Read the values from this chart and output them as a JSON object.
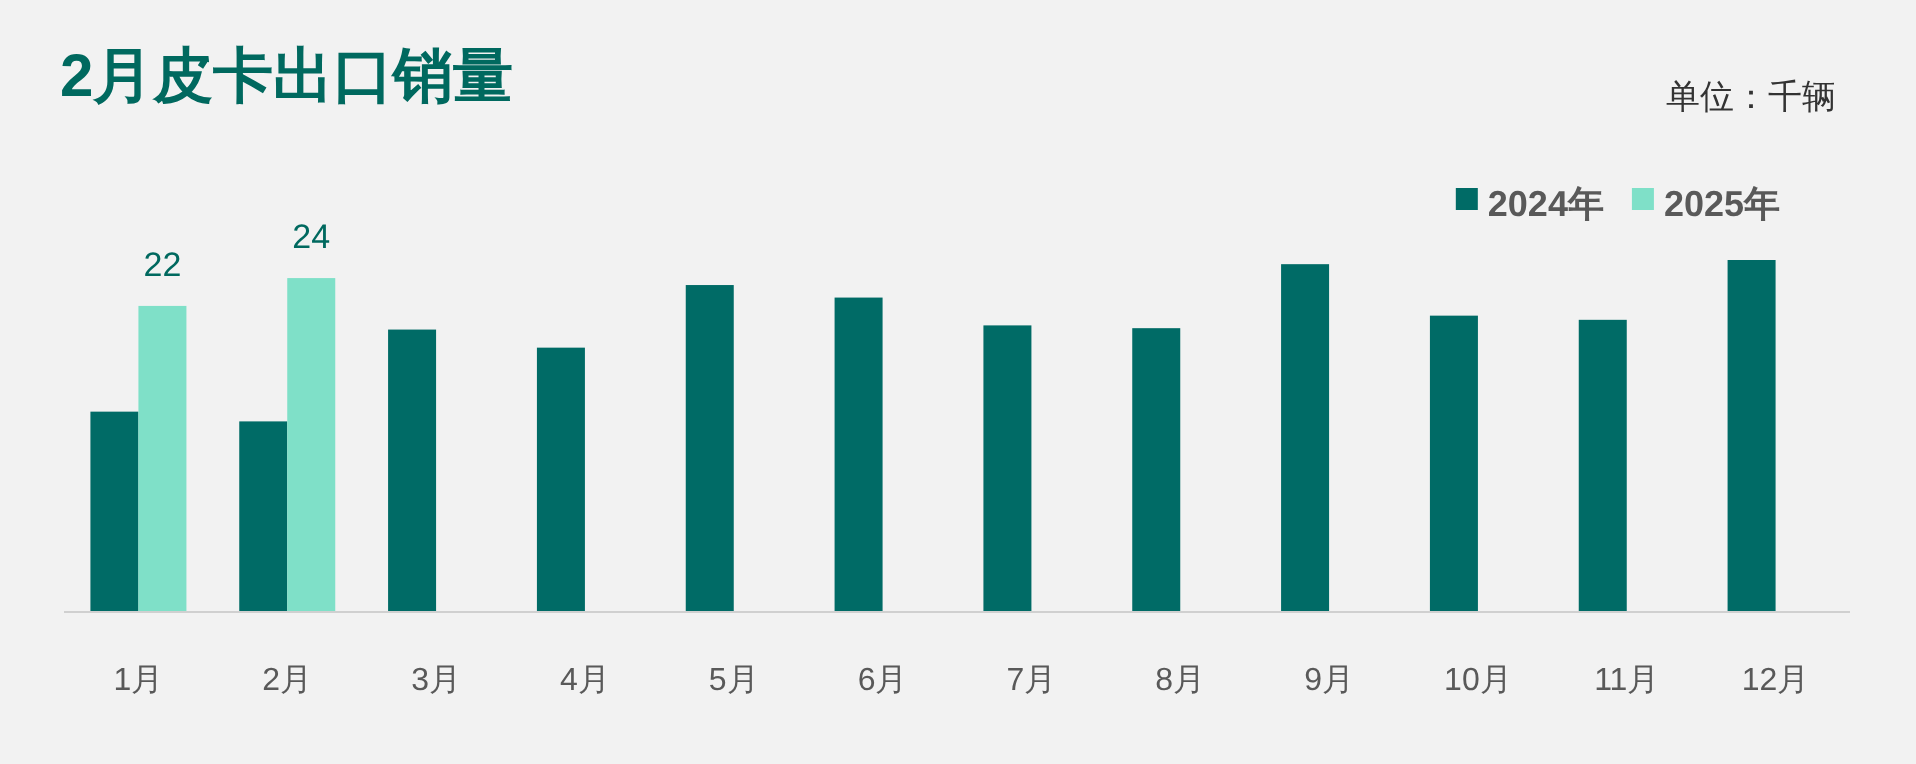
{
  "chart_data": {
    "type": "bar",
    "title": "2月皮卡出口销量",
    "annotations": [
      "单位：千辆"
    ],
    "legend": "top right",
    "categories": [
      "1月",
      "2月",
      "3月",
      "4月",
      "5月",
      "6月",
      "7月",
      "8月",
      "9月",
      "10月",
      "11月",
      "12月"
    ],
    "series": [
      {
        "name": "2024年",
        "color": "#006b66",
        "values": [
          14.4,
          13.7,
          20.3,
          19.0,
          23.5,
          22.6,
          20.6,
          20.4,
          25.0,
          21.3,
          21.0,
          25.3
        ]
      },
      {
        "name": "2025年",
        "color": "#7fe0c8",
        "values": [
          22,
          24,
          null,
          null,
          null,
          null,
          null,
          null,
          null,
          null,
          null,
          null
        ],
        "value_labels": [
          "22",
          "24",
          null,
          null,
          null,
          null,
          null,
          null,
          null,
          null,
          null,
          null
        ]
      }
    ]
  }
}
